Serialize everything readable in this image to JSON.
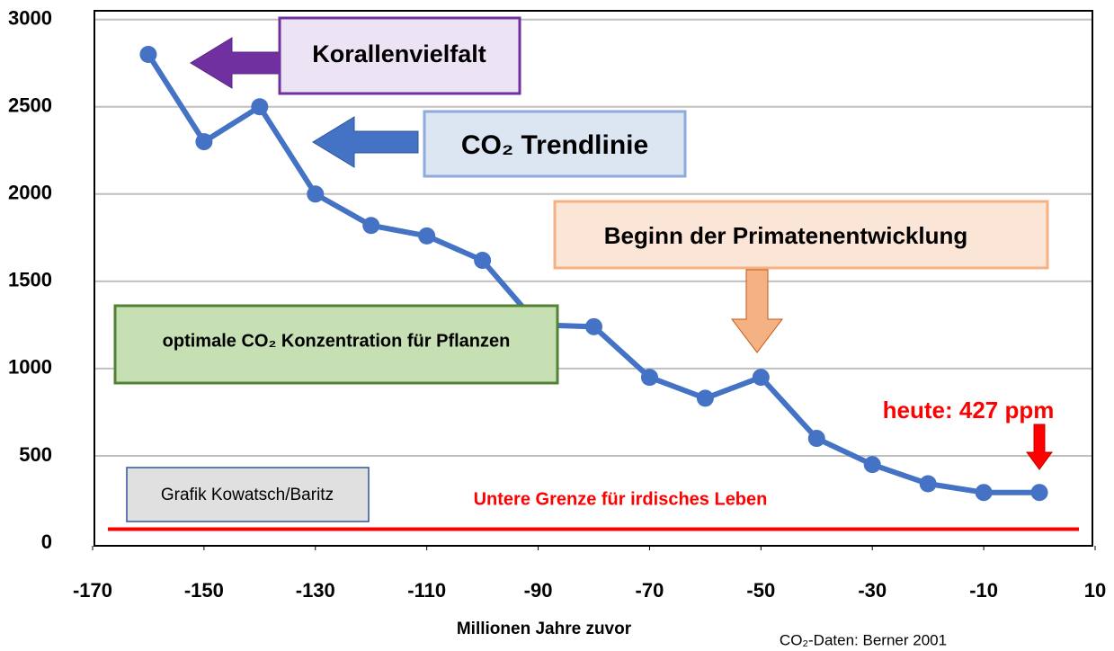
{
  "chart_data": {
    "type": "line",
    "x_label": "Millionen Jahre zuvor",
    "source": "CO₂-Daten: Berner 2001",
    "x": [
      -160,
      -150,
      -140,
      -130,
      -120,
      -110,
      -100,
      -90,
      -80,
      -70,
      -60,
      -50,
      -40,
      -30,
      -20,
      -10,
      0
    ],
    "series": [
      {
        "name": "CO₂ Trendlinie",
        "color": "#4472c4",
        "values": [
          2800,
          2300,
          2500,
          2000,
          1820,
          1760,
          1620,
          1250,
          1240,
          950,
          830,
          950,
          600,
          450,
          340,
          290,
          290
        ]
      }
    ],
    "xlim": [
      -170,
      10
    ],
    "ylim": [
      0,
      3050
    ],
    "xticks": [
      -170,
      -150,
      -130,
      -110,
      -90,
      -70,
      -50,
      -30,
      -10,
      10
    ],
    "yticks": [
      0,
      500,
      1000,
      1500,
      2000,
      2500,
      3000
    ],
    "grid": true,
    "limit_line": {
      "label": "Untere Grenze für irdisches Leben",
      "value": 80,
      "color": "#ff0000"
    },
    "annotations": [
      "Korallenvielfalt",
      "Beginn der Primatenentwicklung",
      "optimale CO₂ Konzentration für Pflanzen",
      "heute: 427 ppm",
      "Grafik Kowatsch/Baritz"
    ]
  }
}
